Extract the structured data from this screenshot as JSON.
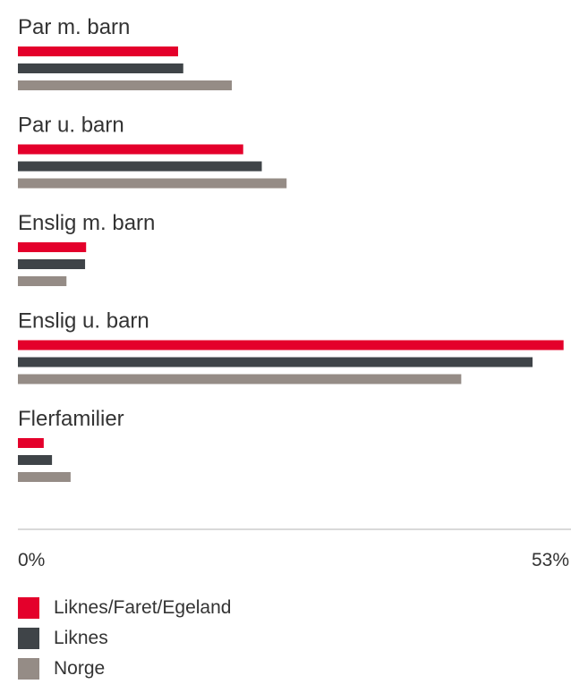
{
  "chart_data": {
    "type": "bar",
    "orientation": "horizontal",
    "categories": [
      "Par m. barn",
      "Par u. barn",
      "Enslig m. barn",
      "Enslig u. barn",
      "Flerfamilier"
    ],
    "series": [
      {
        "name": "Liknes/Faret/Egeland",
        "color": "#e4002b",
        "values": [
          15.5,
          21.8,
          6.6,
          52.8,
          2.5
        ]
      },
      {
        "name": "Liknes",
        "color": "#3f4448",
        "values": [
          16.0,
          23.6,
          6.5,
          49.8,
          3.3
        ]
      },
      {
        "name": "Norge",
        "color": "#958c86",
        "values": [
          20.7,
          26.0,
          4.7,
          42.9,
          5.1
        ]
      }
    ],
    "xlim": [
      0,
      53
    ],
    "tick_labels": [
      "0%",
      "53%"
    ],
    "grid": false,
    "legend_position": "bottom-left"
  }
}
